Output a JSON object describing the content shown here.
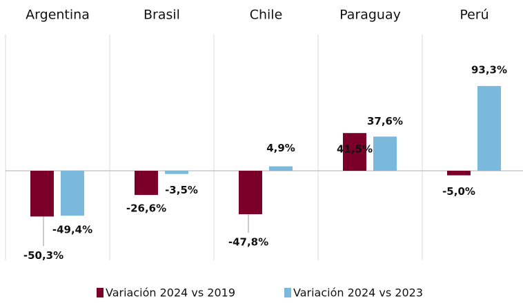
{
  "chart_data": {
    "type": "bar",
    "categories": [
      "Argentina",
      "Brasil",
      "Chile",
      "Paraguay",
      "Perú"
    ],
    "series": [
      {
        "name": "Variación 2024 vs 2019",
        "color": "#7a0029",
        "values": [
          -50.3,
          -26.6,
          -47.8,
          41.5,
          -5.0
        ],
        "value_labels": [
          "-50,3%",
          "-26,6%",
          "-47,8%",
          "41,5%",
          "-5,0%"
        ]
      },
      {
        "name": "Variación 2024 vs 2023",
        "color": "#7ab8dc",
        "values": [
          -49.4,
          -3.5,
          4.9,
          37.6,
          93.3
        ],
        "value_labels": [
          "-49,4%",
          "-3,5%",
          "4,9%",
          "37,6%",
          "93,3%"
        ]
      }
    ],
    "ylim": [
      -100,
      150
    ],
    "legend": "bottom"
  }
}
